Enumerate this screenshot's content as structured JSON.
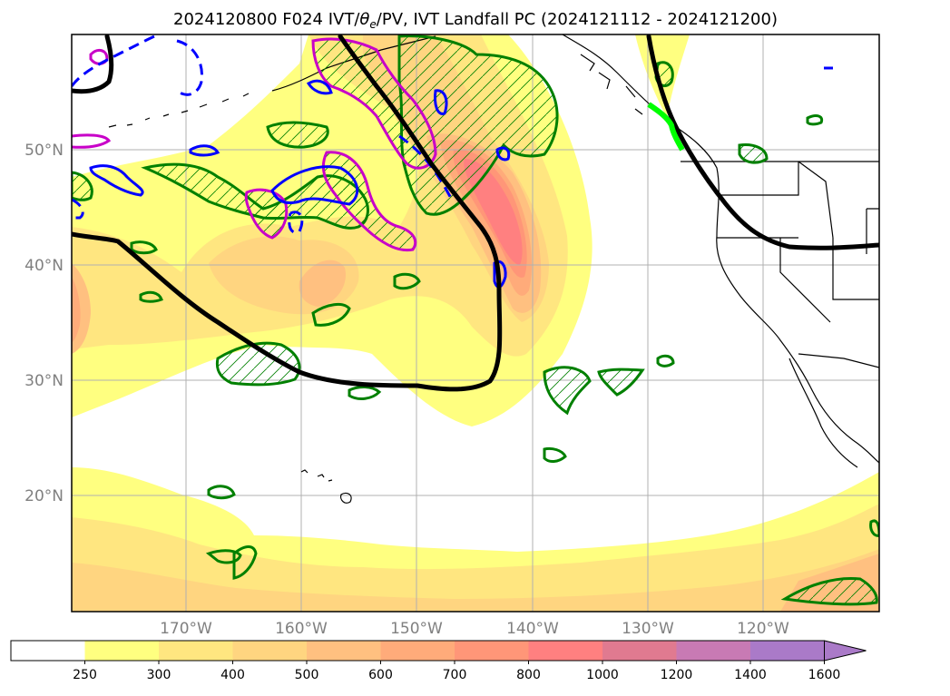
{
  "title": {
    "prefix": "2024120800 F024 IVT/",
    "theta": "θ",
    "sub": "e",
    "suffix": "/PV, IVT Landfall PC (2024121112 - 2024121200)"
  },
  "map": {
    "lat_labels": [
      "50°N",
      "40°N",
      "30°N",
      "20°N"
    ],
    "lon_labels": [
      "170°W",
      "160°W",
      "150°W",
      "140°W",
      "130°W",
      "120°W"
    ],
    "grid": true
  },
  "colorbar": {
    "unit": "",
    "ticks": [
      "250",
      "300",
      "400",
      "500",
      "600",
      "700",
      "800",
      "1000",
      "1200",
      "1400",
      "1600"
    ],
    "colors": [
      "#ffffff",
      "#ffff80",
      "#ffe680",
      "#ffd580",
      "#ffc080",
      "#ffab7a",
      "#ff9678",
      "#ff8080",
      "#e07a90",
      "#c87ab4",
      "#aa7ac8"
    ],
    "extend": "max"
  },
  "overlay_colors": {
    "ivt_pc_line": "#000000",
    "theta_e_contour": "#008000",
    "pv_positive": "#c800c8",
    "pv_contour": "#0000ff",
    "landfall_segment": "#00ff00"
  }
}
